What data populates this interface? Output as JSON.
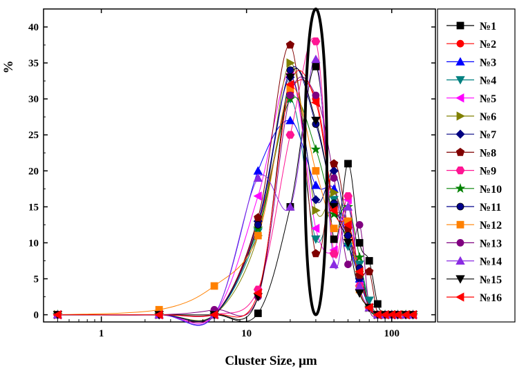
{
  "chart_data": {
    "type": "line",
    "xlabel": "Cluster Size, μm",
    "ylabel": "%",
    "xscale": "log",
    "xlim": [
      0.4,
      200
    ],
    "ylim": [
      -1,
      42.5
    ],
    "xticks": [
      1,
      10,
      100
    ],
    "xtick_labels": [
      "1",
      "10",
      "100"
    ],
    "yticks": [
      0,
      5,
      10,
      15,
      20,
      25,
      30,
      35,
      40
    ],
    "ytick_labels": [
      "0",
      "5",
      "10",
      "15",
      "20",
      "25",
      "30",
      "35",
      "40"
    ],
    "legend_position": "right",
    "x": [
      0.5,
      2.5,
      6,
      12,
      20,
      30,
      40,
      50,
      60,
      70,
      80,
      90,
      100,
      110,
      125,
      140
    ],
    "series": [
      {
        "name": "№1",
        "color": "#000000",
        "marker": "square",
        "values": [
          0,
          0,
          0,
          0.2,
          15,
          34.5,
          10.5,
          21,
          10,
          7.5,
          1.5,
          0,
          0,
          0,
          0,
          0
        ]
      },
      {
        "name": "№2",
        "color": "#ff0000",
        "marker": "circle",
        "values": [
          0,
          0,
          0,
          12.5,
          31,
          30,
          15,
          13,
          6,
          1,
          0,
          0,
          0,
          0,
          0,
          0
        ]
      },
      {
        "name": "№3",
        "color": "#0000ff",
        "marker": "triangle-up",
        "values": [
          0,
          0,
          0,
          20,
          27,
          18,
          17.5,
          10,
          5,
          1,
          0,
          0,
          0,
          0,
          0,
          0
        ]
      },
      {
        "name": "№4",
        "color": "#008080",
        "marker": "triangle-down",
        "values": [
          0,
          0,
          0,
          11.5,
          30,
          10.5,
          16,
          9.5,
          7,
          2,
          0,
          0,
          0,
          0,
          0,
          0
        ]
      },
      {
        "name": "№5",
        "color": "#ff00ff",
        "marker": "triangle-left",
        "values": [
          0,
          0,
          0,
          16.5,
          33.5,
          12,
          9,
          16,
          4,
          1,
          0,
          0,
          0,
          0,
          0,
          0
        ]
      },
      {
        "name": "№6",
        "color": "#808000",
        "marker": "triangle-right",
        "values": [
          0,
          0,
          0,
          11,
          35,
          14.5,
          17,
          11,
          6,
          1,
          0,
          0,
          0,
          0,
          0,
          0
        ]
      },
      {
        "name": "№7",
        "color": "#000080",
        "marker": "diamond",
        "values": [
          0,
          0,
          0,
          13,
          33,
          16,
          20,
          11,
          5,
          1,
          0,
          0,
          0,
          0,
          0,
          0
        ]
      },
      {
        "name": "№8",
        "color": "#800000",
        "marker": "pentagon",
        "values": [
          0,
          0,
          0,
          13.5,
          37.5,
          8.5,
          21,
          12,
          5.5,
          6,
          0,
          0,
          0,
          0,
          0,
          0
        ]
      },
      {
        "name": "№9",
        "color": "#ff1493",
        "marker": "hexagon",
        "values": [
          0,
          0,
          0,
          3.5,
          25,
          38,
          8.5,
          16.5,
          4,
          1,
          0,
          0,
          0,
          0,
          0,
          0
        ]
      },
      {
        "name": "№10",
        "color": "#008000",
        "marker": "star",
        "values": [
          0,
          0,
          0,
          12,
          30,
          23,
          14,
          15,
          8,
          1,
          0,
          0,
          0,
          0,
          0,
          0
        ]
      },
      {
        "name": "№11",
        "color": "#00008b",
        "marker": "ball",
        "values": [
          0,
          0,
          0,
          12.5,
          34,
          26.5,
          15.5,
          11,
          6.5,
          1,
          0,
          0,
          0,
          0,
          0,
          0
        ]
      },
      {
        "name": "№12",
        "color": "#ff8000",
        "marker": "square",
        "values": [
          0,
          0.7,
          4,
          11,
          31.5,
          20,
          12,
          13,
          3.5,
          1,
          0,
          0,
          0,
          0,
          0,
          0
        ]
      },
      {
        "name": "№13",
        "color": "#800080",
        "marker": "circle",
        "values": [
          0,
          0,
          0.7,
          2.5,
          30.5,
          30.5,
          19,
          7,
          12.5,
          1,
          0,
          0,
          0,
          0,
          0,
          0
        ]
      },
      {
        "name": "№14",
        "color": "#8a2be2",
        "marker": "triangle-up",
        "values": [
          0,
          0,
          0,
          19,
          15,
          35.5,
          7,
          15,
          4,
          1,
          0,
          0,
          0,
          0,
          0,
          0
        ]
      },
      {
        "name": "№15",
        "color": "#000000",
        "marker": "triangle-down",
        "values": [
          0,
          0,
          0,
          2.5,
          33,
          27,
          15,
          10,
          3,
          1,
          0,
          0,
          0,
          0,
          0,
          0
        ]
      },
      {
        "name": "№16",
        "color": "#ff0000",
        "marker": "triangle-left",
        "values": [
          0,
          0,
          0,
          3,
          32,
          29.5,
          14.5,
          12.5,
          6,
          1,
          0,
          0,
          0,
          0,
          0,
          0
        ]
      }
    ],
    "highlight": {
      "shape": "ellipse",
      "x_center": 30,
      "y_range": [
        0,
        42.5
      ],
      "color": "#000000"
    }
  }
}
